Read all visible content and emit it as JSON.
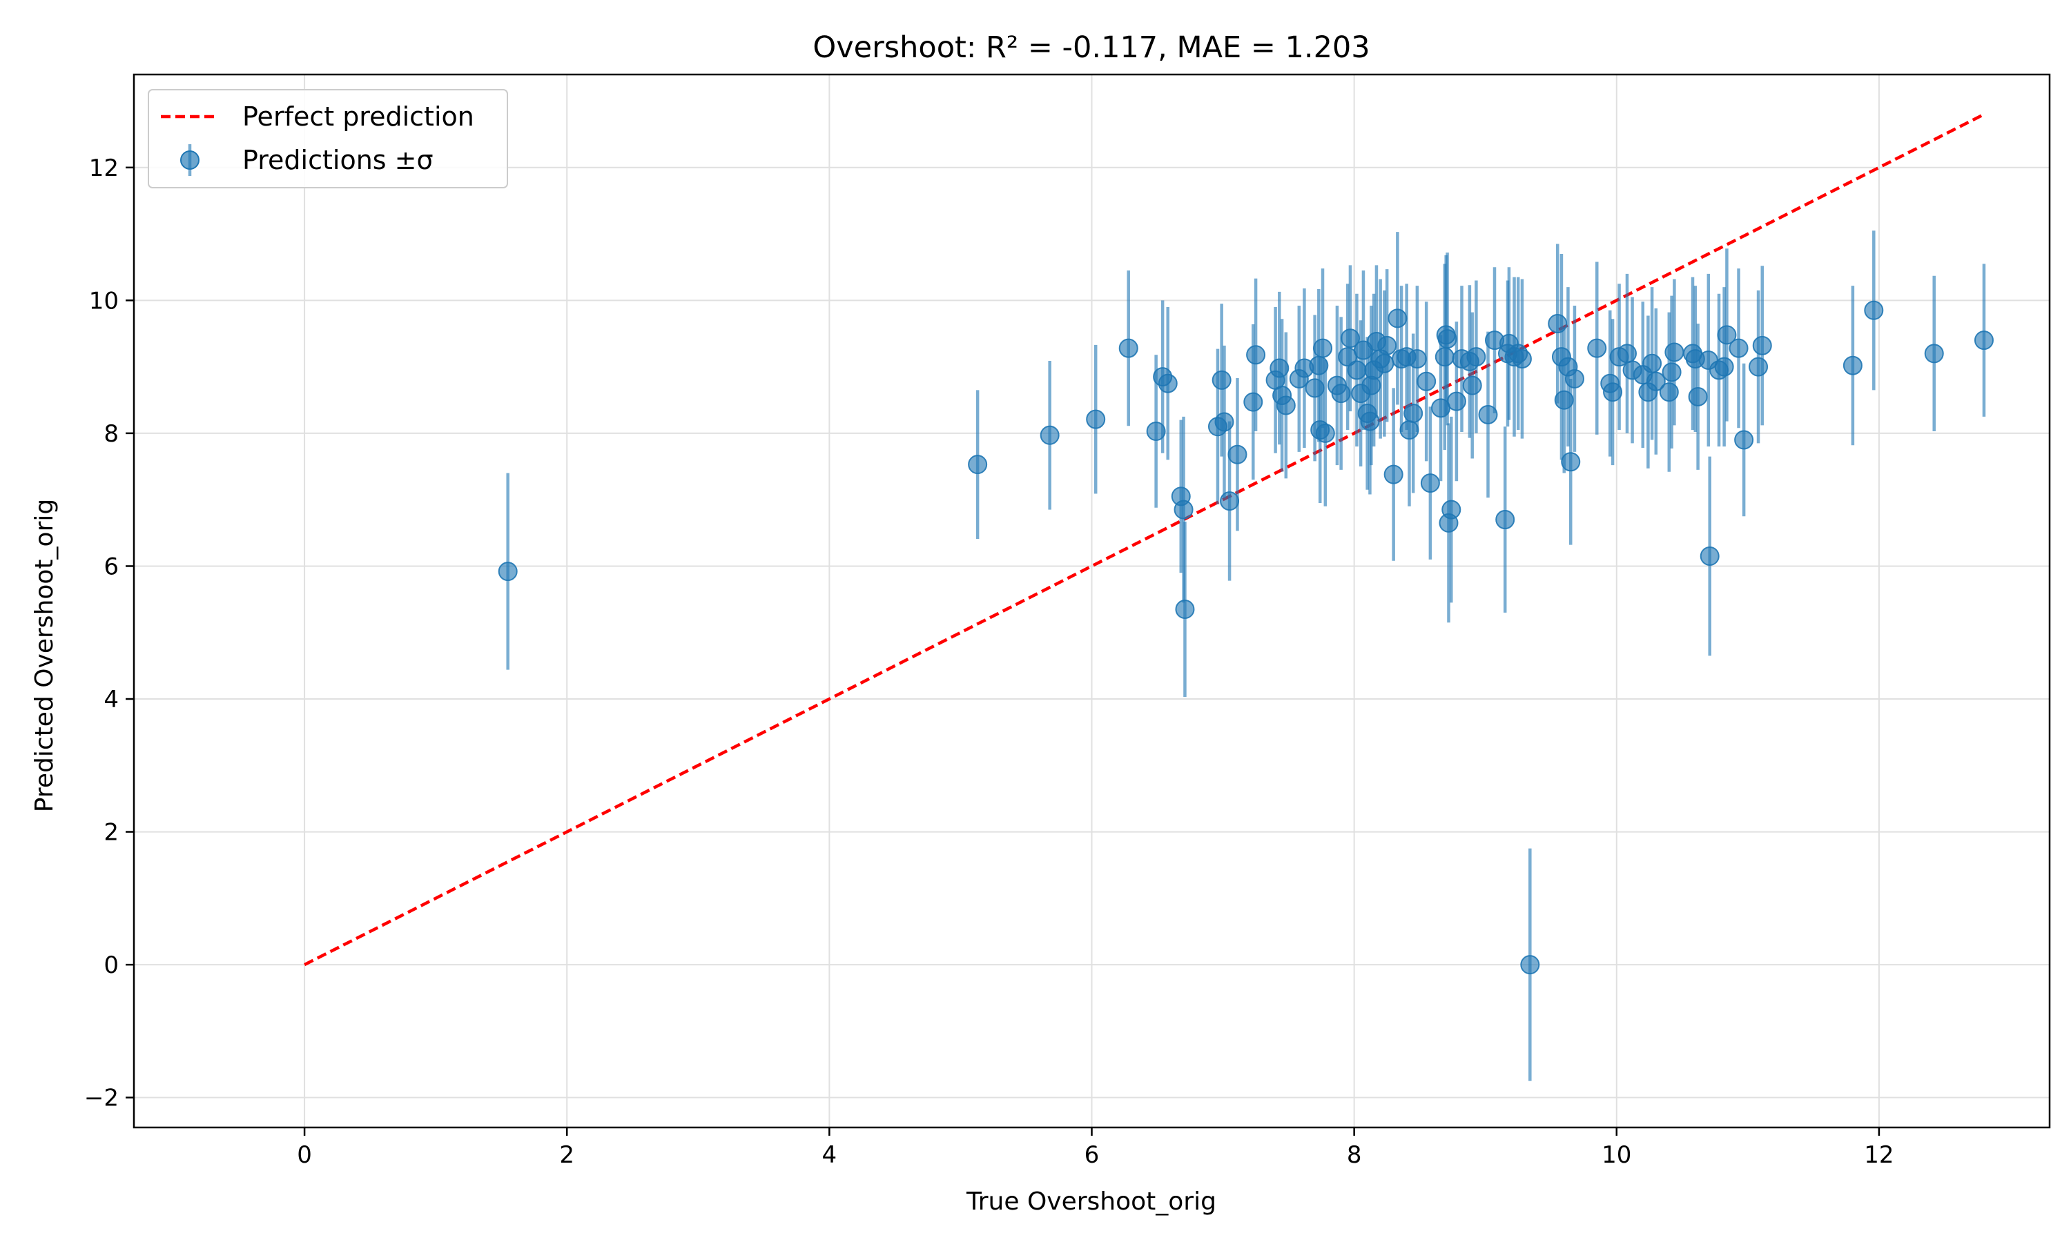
{
  "chart_data": {
    "type": "scatter",
    "title": "Overshoot: R² = -0.117, MAE = 1.203",
    "xlabel": "True Overshoot_orig",
    "ylabel": "Predicted Overshoot_orig",
    "xlim": [
      -1.3,
      13.3
    ],
    "ylim": [
      -2.45,
      13.4
    ],
    "x_ticks": [
      0,
      2,
      4,
      6,
      8,
      10,
      12
    ],
    "x_tick_labels": [
      "0",
      "2",
      "4",
      "6",
      "8",
      "10",
      "12"
    ],
    "y_ticks": [
      -2,
      0,
      2,
      4,
      6,
      8,
      10,
      12
    ],
    "y_tick_labels": [
      "−2",
      "0",
      "2",
      "4",
      "6",
      "8",
      "10",
      "12"
    ],
    "grid": true,
    "legend_position": "top-left",
    "legend": [
      "Perfect prediction",
      "Predictions ±σ"
    ],
    "colors": {
      "points": "#1f77b4",
      "reference_line": "#ff0000",
      "grid": "#e0e0e0"
    },
    "series": [
      {
        "name": "Perfect prediction",
        "style": "dashed",
        "x": [
          0,
          12.8
        ],
        "y": [
          0,
          12.8
        ]
      },
      {
        "name": "Predictions ±σ",
        "x": [
          1.55,
          5.13,
          5.68,
          6.03,
          6.28,
          6.49,
          6.54,
          6.58,
          6.68,
          6.7,
          6.71,
          6.96,
          6.99,
          7.01,
          7.05,
          7.11,
          7.23,
          7.25,
          7.4,
          7.43,
          7.45,
          7.48,
          7.58,
          7.62,
          7.7,
          7.73,
          7.74,
          7.76,
          7.78,
          7.87,
          7.9,
          7.95,
          7.97,
          8.02,
          8.05,
          8.07,
          8.1,
          8.12,
          8.13,
          8.15,
          8.17,
          8.2,
          8.23,
          8.25,
          8.3,
          8.33,
          8.36,
          8.4,
          8.42,
          8.45,
          8.48,
          8.55,
          8.58,
          8.66,
          8.69,
          8.7,
          8.71,
          8.72,
          8.74,
          8.78,
          8.82,
          8.88,
          8.9,
          8.93,
          9.02,
          9.07,
          9.15,
          9.17,
          9.18,
          9.22,
          9.25,
          9.28,
          9.34,
          9.55,
          9.58,
          9.6,
          9.63,
          9.65,
          9.68,
          9.85,
          9.95,
          9.97,
          10.02,
          10.08,
          10.12,
          10.2,
          10.24,
          10.27,
          10.3,
          10.4,
          10.42,
          10.44,
          10.58,
          10.6,
          10.62,
          10.7,
          10.71,
          10.78,
          10.82,
          10.84,
          10.93,
          10.97,
          11.08,
          11.11,
          11.8,
          11.96,
          12.42,
          12.8
        ],
        "y": [
          5.92,
          7.53,
          7.97,
          8.21,
          9.28,
          8.03,
          8.85,
          8.75,
          7.05,
          6.85,
          5.35,
          8.1,
          8.8,
          8.17,
          6.98,
          7.68,
          8.47,
          9.18,
          8.8,
          8.98,
          8.57,
          8.42,
          8.82,
          8.98,
          8.68,
          9.02,
          8.05,
          9.28,
          8.0,
          8.72,
          8.6,
          9.15,
          9.43,
          8.95,
          8.6,
          9.25,
          8.3,
          8.18,
          8.72,
          8.95,
          9.38,
          9.12,
          9.05,
          9.32,
          7.38,
          9.73,
          9.12,
          9.15,
          8.05,
          8.3,
          9.12,
          8.78,
          7.25,
          8.38,
          9.15,
          9.48,
          9.42,
          6.65,
          6.85,
          8.48,
          9.12,
          9.08,
          8.72,
          9.15,
          8.28,
          9.4,
          6.7,
          9.2,
          9.35,
          9.15,
          9.2,
          9.12,
          0.0,
          9.65,
          9.15,
          8.5,
          9.0,
          7.57,
          8.82,
          9.28,
          8.75,
          8.62,
          9.15,
          9.2,
          8.95,
          8.88,
          8.62,
          9.05,
          8.78,
          8.62,
          8.92,
          9.22,
          9.2,
          9.12,
          8.55,
          9.1,
          6.15,
          8.95,
          9.0,
          9.48,
          9.28,
          7.9,
          9.0,
          9.32,
          9.02,
          9.85,
          9.2,
          9.4
        ],
        "err": [
          1.48,
          1.12,
          1.12,
          1.12,
          1.17,
          1.15,
          1.15,
          1.15,
          1.15,
          1.4,
          1.32,
          1.17,
          1.15,
          1.15,
          1.2,
          1.15,
          1.17,
          1.15,
          1.1,
          1.15,
          1.15,
          1.1,
          1.1,
          1.2,
          1.1,
          1.15,
          1.1,
          1.2,
          1.1,
          1.2,
          1.15,
          1.1,
          1.1,
          1.15,
          1.1,
          1.2,
          1.15,
          1.1,
          1.2,
          1.15,
          1.15,
          1.2,
          1.1,
          1.15,
          1.3,
          1.3,
          1.1,
          1.1,
          1.15,
          1.2,
          1.1,
          1.2,
          1.15,
          1.1,
          1.4,
          1.2,
          1.3,
          1.5,
          1.4,
          1.2,
          1.1,
          1.15,
          1.1,
          1.15,
          1.25,
          1.1,
          1.4,
          1.1,
          1.15,
          1.2,
          1.15,
          1.2,
          1.75,
          1.2,
          1.55,
          1.1,
          1.2,
          1.25,
          1.1,
          1.3,
          1.1,
          1.1,
          1.1,
          1.2,
          1.1,
          1.1,
          1.15,
          1.15,
          1.1,
          1.2,
          1.15,
          1.1,
          1.15,
          1.1,
          1.1,
          1.3,
          1.5,
          1.15,
          1.2,
          1.3,
          1.2,
          1.15,
          1.15,
          1.2,
          1.2,
          1.2,
          1.17,
          1.15
        ]
      }
    ]
  }
}
